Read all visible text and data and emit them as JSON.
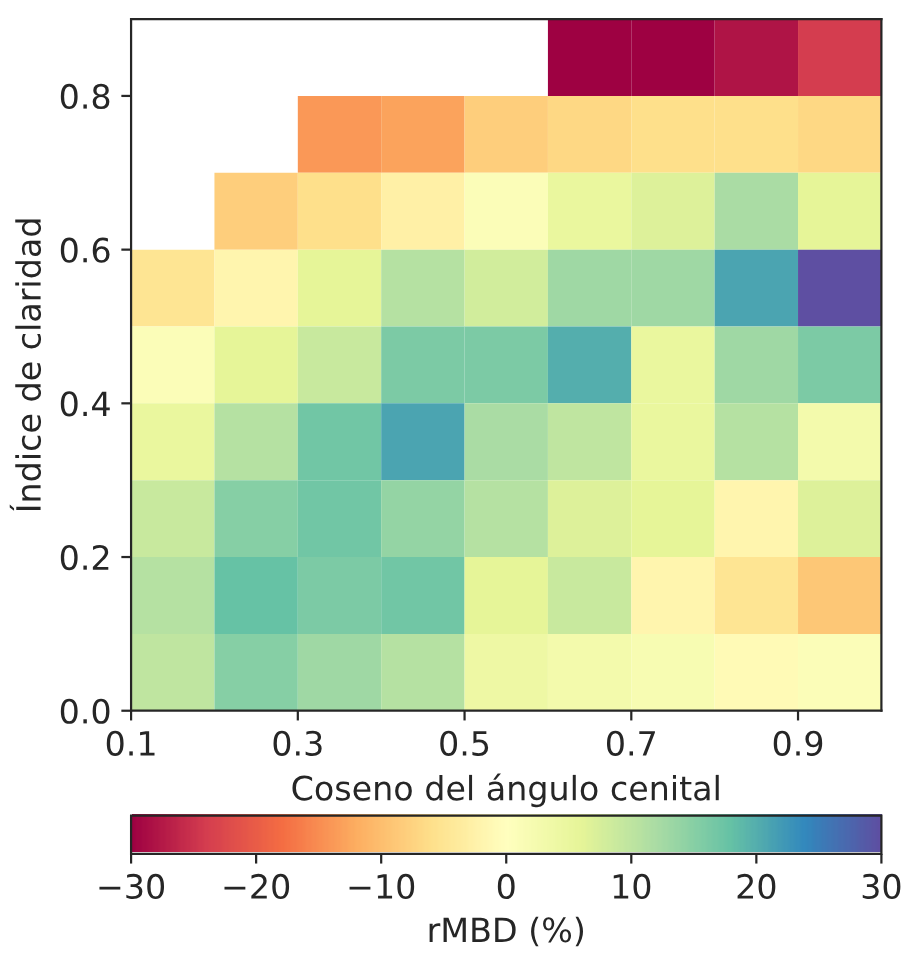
{
  "chart_data": {
    "type": "heatmap",
    "xlabel": "Coseno del ángulo cenital",
    "ylabel": "Índice de claridad",
    "clabel": "rMBD (%)",
    "x": [
      0.15,
      0.25,
      0.35,
      0.45,
      0.55,
      0.65,
      0.75,
      0.85,
      0.95
    ],
    "y": [
      0.85,
      0.75,
      0.65,
      0.55,
      0.45,
      0.35,
      0.25,
      0.15,
      0.05
    ],
    "xlim": [
      0.1,
      1.0
    ],
    "ylim": [
      0,
      0.9
    ],
    "xticks": [
      0.1,
      0.3,
      0.5,
      0.7,
      0.9
    ],
    "yticks": [
      {
        "value": 0,
        "label": "0.0"
      },
      {
        "value": 0.2,
        "label": "0.2"
      },
      {
        "value": 0.4,
        "label": "0.4"
      },
      {
        "value": 0.6,
        "label": "0.6"
      },
      {
        "value": 0.8,
        "label": "0.8"
      }
    ],
    "clim": [
      -30,
      30
    ],
    "cticks": [
      {
        "value": -30,
        "label": "−30"
      },
      {
        "value": -20,
        "label": "−20"
      },
      {
        "value": -10,
        "label": "−10"
      },
      0,
      10,
      20,
      30
    ],
    "cells": [
      [
        null,
        null,
        null,
        null,
        null,
        -30,
        -30,
        -28,
        -24
      ],
      [
        null,
        null,
        -14,
        -13,
        -8,
        -7,
        -6,
        -6,
        -7
      ],
      [
        null,
        -8,
        -6,
        -3,
        1,
        5,
        7,
        12,
        6
      ],
      [
        -5,
        -2,
        6,
        11,
        8,
        13,
        13,
        21,
        30
      ],
      [
        1,
        6,
        9,
        16,
        16,
        20,
        5,
        13,
        16
      ],
      [
        5,
        11,
        17,
        21,
        12,
        10,
        5,
        11,
        3
      ],
      [
        9,
        15,
        17,
        14,
        11,
        7,
        6,
        -2,
        7
      ],
      [
        11,
        18,
        16,
        17,
        6,
        9,
        -2,
        -5,
        -9
      ],
      [
        10,
        15,
        13,
        11,
        4,
        3,
        2,
        -1,
        1
      ]
    ]
  }
}
